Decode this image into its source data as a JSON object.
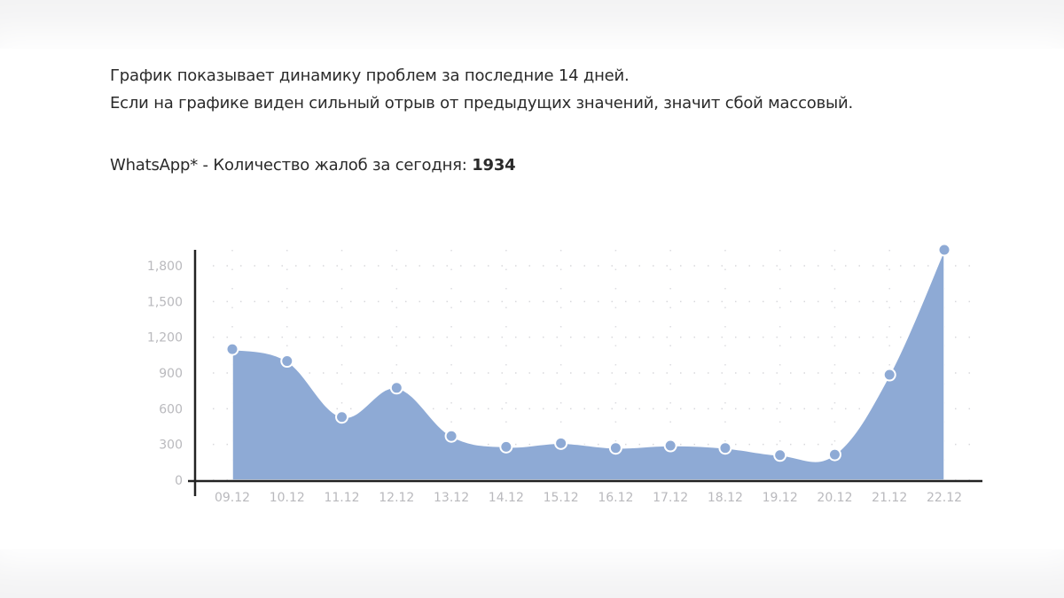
{
  "intro": {
    "line1": "График показывает динамику проблем за последние 14 дней.",
    "line2": "Если на графике виден сильный отрыв от предыдущих значений, значит сбой массовый."
  },
  "count": {
    "label": "WhatsApp* - Количество жалоб за сегодня: ",
    "value": "1934"
  },
  "chart_data": {
    "type": "area",
    "title": "",
    "xlabel": "",
    "ylabel": "",
    "categories": [
      "09.12",
      "10.12",
      "11.12",
      "12.12",
      "13.12",
      "14.12",
      "15.12",
      "16.12",
      "17.12",
      "18.12",
      "19.12",
      "20.12",
      "21.12",
      "22.12"
    ],
    "values": [
      1100,
      1000,
      530,
      775,
      370,
      280,
      310,
      270,
      290,
      270,
      210,
      215,
      885,
      1934
    ],
    "yticks": [
      0,
      300,
      600,
      900,
      1200,
      1500,
      1800
    ],
    "ytick_labels": [
      "0",
      "300",
      "600",
      "900",
      "1,200",
      "1,500",
      "1,800"
    ],
    "ylim": [
      0,
      1800
    ],
    "grid": "dotted",
    "fill_color": "#8eaad5",
    "marker_color": "#8eaad5"
  }
}
